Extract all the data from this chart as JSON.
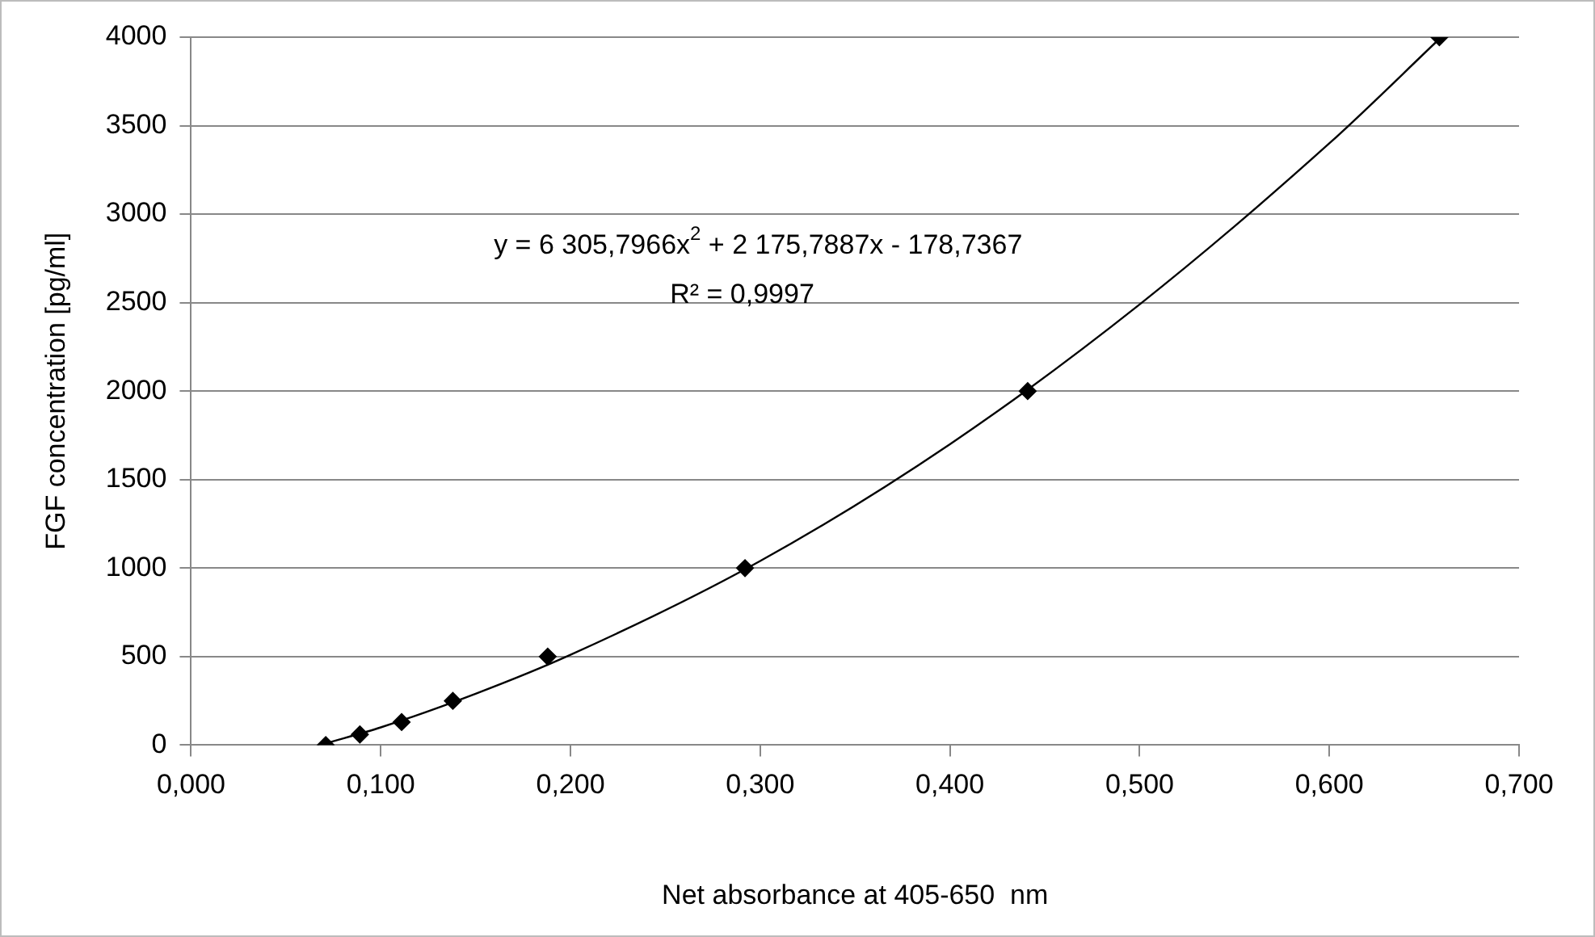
{
  "chart_data": {
    "type": "scatter",
    "xlabel": "Net absorbance at 405-650  nm",
    "ylabel": "FGF concentration [pg/ml]",
    "x": [
      0.071,
      0.089,
      0.111,
      0.138,
      0.188,
      0.292,
      0.441,
      0.658
    ],
    "series": [
      {
        "type": "scatter",
        "color": "#000000",
        "marker": "diamond",
        "values": [
          0,
          60,
          130,
          250,
          500,
          1000,
          2000,
          4000
        ]
      },
      {
        "type": "line",
        "color": "#000000",
        "marker": "none",
        "x": [
          0.071,
          0.1,
          0.15,
          0.2,
          0.3,
          0.4,
          0.5,
          0.6,
          0.658
        ],
        "values": [
          10,
          100,
          290,
          510,
          1040,
          1700,
          2490,
          3400,
          3990
        ]
      }
    ],
    "xlim": [
      0,
      0.7
    ],
    "xticks": [
      {
        "value": 0,
        "label": "0,000"
      },
      {
        "value": 0.1,
        "label": "0,100"
      },
      {
        "value": 0.2,
        "label": "0,200"
      },
      {
        "value": 0.3,
        "label": "0,300"
      },
      {
        "value": 0.4,
        "label": "0,400"
      },
      {
        "value": 0.5,
        "label": "0,500"
      },
      {
        "value": 0.6,
        "label": "0,600"
      },
      {
        "value": 0.7,
        "label": "0,700"
      }
    ],
    "ylim": [
      0,
      4000
    ],
    "yticks": [
      0,
      500,
      1000,
      1500,
      2000,
      2500,
      3000,
      3500,
      4000
    ],
    "grid": "y",
    "legend": false,
    "annotations": [
      "y = 6 305,7966x$^{2}$ + 2 175,7887x - 178,7367",
      "R² = 0,9997"
    ]
  }
}
